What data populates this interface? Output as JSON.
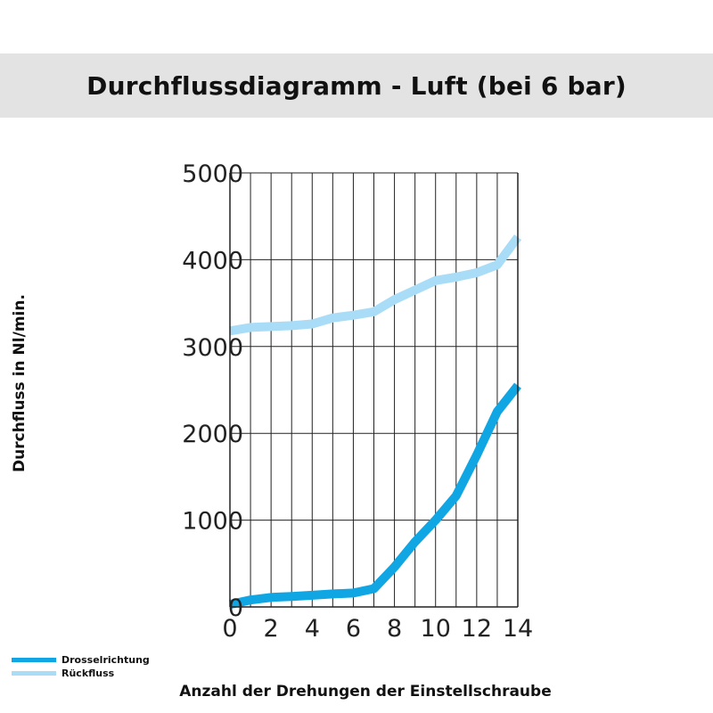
{
  "chart_data": {
    "type": "line",
    "title": "Durchflussdiagramm - Luft (bei 6 bar)",
    "xlabel": "Anzahl der Drehungen der Einstellschraube",
    "ylabel": "Durchfluss in Nl/min.",
    "xlim": [
      0,
      14
    ],
    "ylim": [
      0,
      5000
    ],
    "x_ticks": [
      0,
      2,
      4,
      6,
      8,
      10,
      12,
      14
    ],
    "y_ticks": [
      0,
      1000,
      2000,
      3000,
      4000,
      5000
    ],
    "grid": true,
    "legend_position": "bottom-left",
    "series": [
      {
        "name": "Drosselrichtung",
        "color": "#10a6e4",
        "points": [
          [
            0,
            30
          ],
          [
            1,
            80
          ],
          [
            2,
            110
          ],
          [
            3,
            120
          ],
          [
            4,
            135
          ],
          [
            5,
            150
          ],
          [
            6,
            160
          ],
          [
            7,
            210
          ],
          [
            8,
            460
          ],
          [
            9,
            750
          ],
          [
            10,
            1000
          ],
          [
            11,
            1280
          ],
          [
            12,
            1750
          ],
          [
            13,
            2250
          ],
          [
            14,
            2550
          ]
        ]
      },
      {
        "name": "Rückfluss",
        "color": "#a9dcf6",
        "points": [
          [
            0,
            3180
          ],
          [
            1,
            3220
          ],
          [
            2,
            3230
          ],
          [
            3,
            3240
          ],
          [
            4,
            3260
          ],
          [
            5,
            3330
          ],
          [
            6,
            3360
          ],
          [
            7,
            3400
          ],
          [
            8,
            3540
          ],
          [
            9,
            3650
          ],
          [
            10,
            3760
          ],
          [
            11,
            3800
          ],
          [
            12,
            3850
          ],
          [
            13,
            3940
          ],
          [
            14,
            4260
          ]
        ]
      }
    ]
  }
}
